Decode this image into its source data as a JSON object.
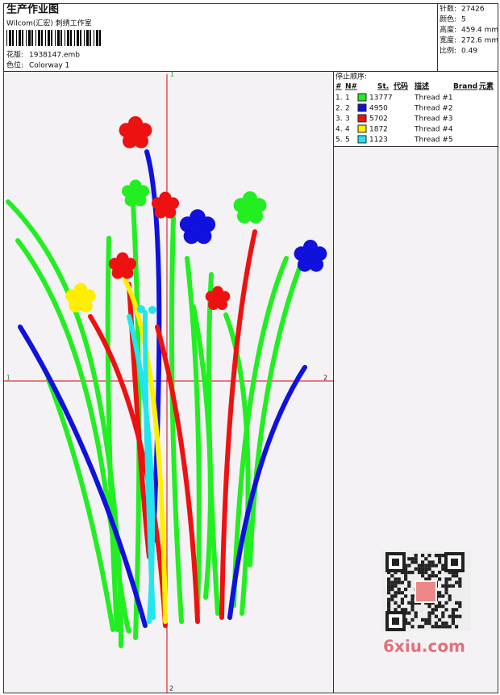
{
  "header": {
    "title": "生产作业图",
    "subtitle": "Wilcom(汇宏) 刺绣工作室",
    "design_label": "花版:",
    "design": "1938147.emb",
    "colorway_label": "色位:",
    "colorway": "Colorway 1"
  },
  "stats": [
    {
      "label": "针数:",
      "value": "27426"
    },
    {
      "label": "颜色:",
      "value": "5"
    },
    {
      "label": "高度:",
      "value": "459.4 mm"
    },
    {
      "label": "宽度:",
      "value": "272.6 mm"
    },
    {
      "label": "比例:",
      "value": "0.49"
    }
  ],
  "stop_sequence": {
    "title": "停止顺序:",
    "columns": [
      "#",
      "N#",
      "St.",
      "代码",
      "描述",
      "Brand",
      "元素"
    ],
    "rows": [
      {
        "cells": [
          "1.",
          "1",
          "13777",
          "Thread #1"
        ],
        "color": "#22ee22"
      },
      {
        "cells": [
          "2.",
          "2",
          "4950",
          "Thread #2"
        ],
        "color": "#1111dd"
      },
      {
        "cells": [
          "3.",
          "3",
          "5702",
          "Thread #3"
        ],
        "color": "#ee1111"
      },
      {
        "cells": [
          "4.",
          "4",
          "1872",
          "Thread #4"
        ],
        "color": "#ffee00"
      },
      {
        "cells": [
          "5.",
          "5",
          "1123",
          "Thread #5"
        ],
        "color": "#22e5ee"
      }
    ]
  },
  "crosshair": {
    "top": "1",
    "bottom": "2",
    "left": "1",
    "right": "2"
  },
  "watermark": "6xiu.com"
}
